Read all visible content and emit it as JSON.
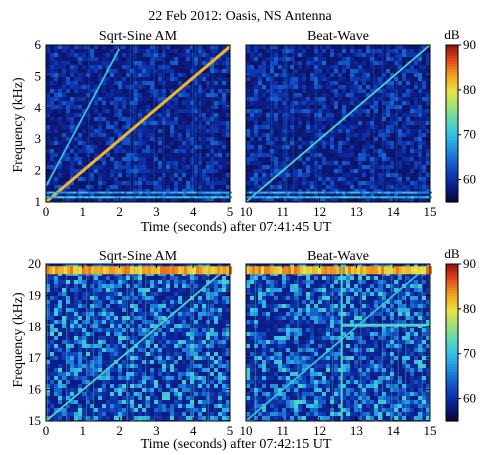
{
  "title": "22 Feb 2012: Oasis, NS Antenna",
  "colors": {
    "colormap": [
      "#08083a",
      "#0c1f8e",
      "#1046c0",
      "#1d7fd8",
      "#2fb7e6",
      "#52d6c0",
      "#9ce07a",
      "#e8e444",
      "#f2a21f",
      "#e2451a",
      "#8e0c0a"
    ]
  },
  "chart_data": [
    {
      "type": "heatmap",
      "name": "top-left",
      "title": "Sqrt-Sine AM",
      "xlabel": "Time (seconds) after 07:41:45 UT",
      "ylabel": "Frequency (kHz)",
      "xlim": [
        0,
        5
      ],
      "ylim": [
        1,
        6
      ],
      "xticks": [
        "0",
        "1",
        "2",
        "3",
        "4",
        "5"
      ],
      "yticks": [
        "1",
        "2",
        "3",
        "4",
        "5",
        "6"
      ],
      "features": [
        {
          "kind": "ramp",
          "from": [
            0,
            1.0
          ],
          "to": [
            5,
            5.95
          ],
          "level": 82
        },
        {
          "kind": "ramp",
          "from": [
            0,
            1.5
          ],
          "to": [
            2.0,
            5.9
          ],
          "level": 70
        },
        {
          "kind": "band",
          "freq": 1.15,
          "level": 70
        },
        {
          "kind": "band",
          "freq": 1.3,
          "level": 68
        }
      ]
    },
    {
      "type": "heatmap",
      "name": "top-right",
      "title": "Beat-Wave",
      "xlabel": "",
      "ylabel": "",
      "xlim": [
        10,
        15
      ],
      "ylim": [
        1,
        6
      ],
      "xticks": [
        "10",
        "11",
        "12",
        "13",
        "14",
        "15"
      ],
      "features": [
        {
          "kind": "ramp",
          "from": [
            10,
            1.0
          ],
          "to": [
            15,
            6.0
          ],
          "level": 72
        },
        {
          "kind": "band",
          "freq": 1.15,
          "level": 70
        },
        {
          "kind": "band",
          "freq": 1.3,
          "level": 68
        }
      ]
    },
    {
      "type": "heatmap",
      "name": "bottom-left",
      "title": "Sqrt-Sine AM",
      "xlabel": "Time (seconds) after 07:42:15 UT",
      "ylabel": "Frequency (kHz)",
      "xlim": [
        0,
        5
      ],
      "ylim": [
        15,
        20
      ],
      "xticks": [
        "0",
        "1",
        "2",
        "3",
        "4",
        "5"
      ],
      "yticks": [
        "15",
        "16",
        "17",
        "18",
        "19",
        "20"
      ],
      "features": [
        {
          "kind": "ramp",
          "from": [
            0,
            15.0
          ],
          "to": [
            5,
            19.95
          ],
          "level": 72
        },
        {
          "kind": "band",
          "freq": 19.8,
          "level": 82
        }
      ]
    },
    {
      "type": "heatmap",
      "name": "bottom-right",
      "title": "Beat-Wave",
      "xlabel": "",
      "ylabel": "",
      "xlim": [
        10,
        15
      ],
      "ylim": [
        15,
        20
      ],
      "xticks": [
        "10",
        "11",
        "12",
        "13",
        "14",
        "15"
      ],
      "features": [
        {
          "kind": "ramp",
          "from": [
            10,
            15.0
          ],
          "to": [
            15,
            20.0
          ],
          "level": 70
        },
        {
          "kind": "band",
          "freq": 19.8,
          "level": 82
        },
        {
          "kind": "segment",
          "freq": 18.05,
          "t0": 12.6,
          "t1": 15,
          "level": 72
        },
        {
          "kind": "vline",
          "t": 12.6,
          "level": 72
        }
      ]
    }
  ],
  "colorbars": [
    {
      "label": "dB",
      "ticks": [
        "60",
        "70",
        "80",
        "90"
      ],
      "range": [
        55,
        90
      ]
    },
    {
      "label": "dB",
      "ticks": [
        "60",
        "70",
        "80",
        "90"
      ],
      "range": [
        55,
        90
      ]
    }
  ]
}
